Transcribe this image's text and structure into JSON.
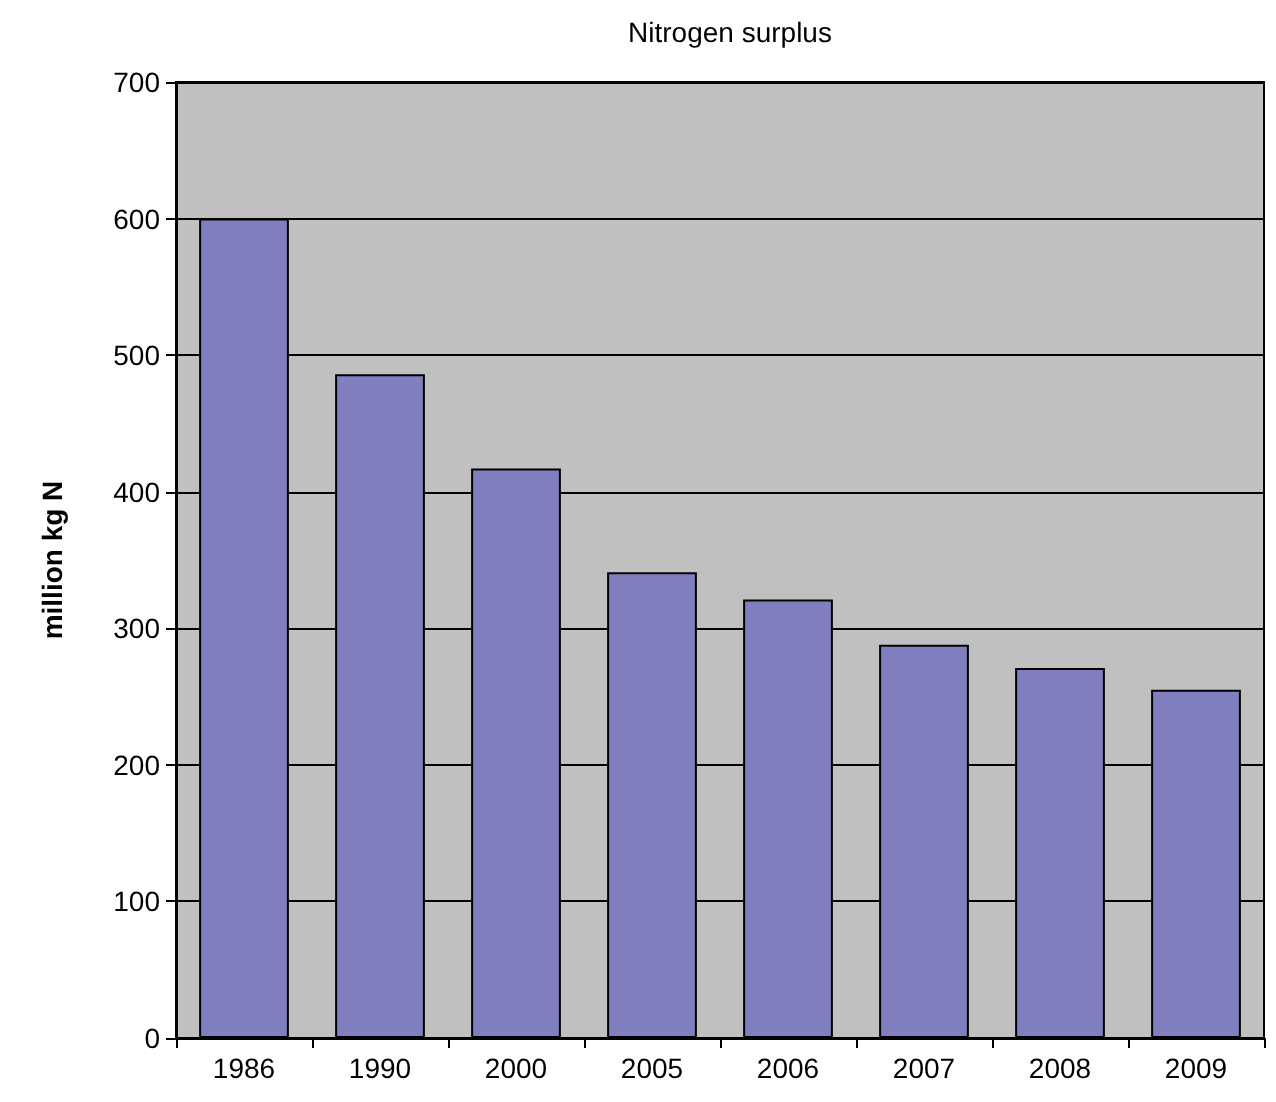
{
  "chart_data": {
    "type": "bar",
    "title": "Nitrogen surplus",
    "ylabel": "million kg N",
    "categories": [
      "1986",
      "1990",
      "2000",
      "2005",
      "2006",
      "2007",
      "2008",
      "2009"
    ],
    "values": [
      600,
      486,
      417,
      341,
      321,
      288,
      271,
      255
    ],
    "color": "#8080c0",
    "ylim": [
      0,
      700
    ],
    "yticks": [
      0,
      100,
      200,
      300,
      400,
      500,
      600,
      700
    ],
    "grid": "y"
  }
}
